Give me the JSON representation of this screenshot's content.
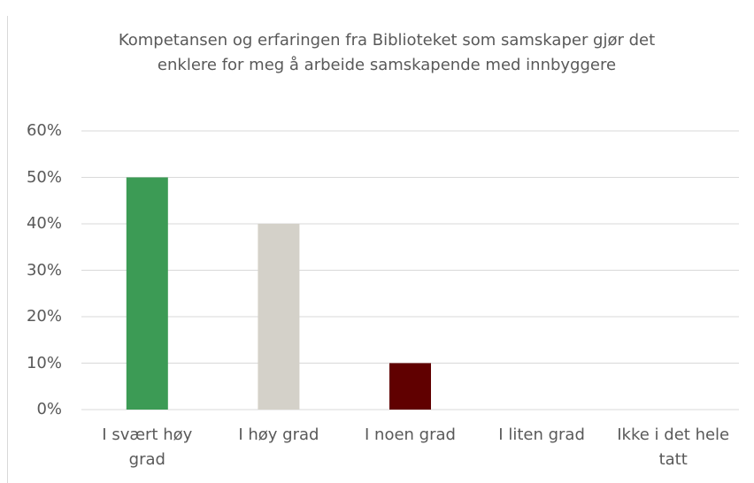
{
  "chart_data": {
    "type": "bar",
    "title": "Kompetansen og erfaringen fra Biblioteket som samskaper gjør det enklere for meg å arbeide samskapende med innbyggere",
    "categories": [
      "I svært høy grad",
      "I høy grad",
      "I noen grad",
      "I liten grad",
      "Ikke i det hele tatt"
    ],
    "values": [
      50,
      40,
      10,
      0,
      0
    ],
    "colors": [
      "#3c9b55",
      "#d4d1c9",
      "#600000"
    ],
    "ylim": [
      0,
      60
    ],
    "yticks": [
      {
        "value": 0,
        "label": "0%"
      },
      {
        "value": 10,
        "label": "10%"
      },
      {
        "value": 20,
        "label": "20%"
      },
      {
        "value": 30,
        "label": "30%"
      },
      {
        "value": 40,
        "label": "40%"
      },
      {
        "value": 50,
        "label": "50%"
      },
      {
        "value": 60,
        "label": "60%"
      }
    ],
    "grid": true
  }
}
